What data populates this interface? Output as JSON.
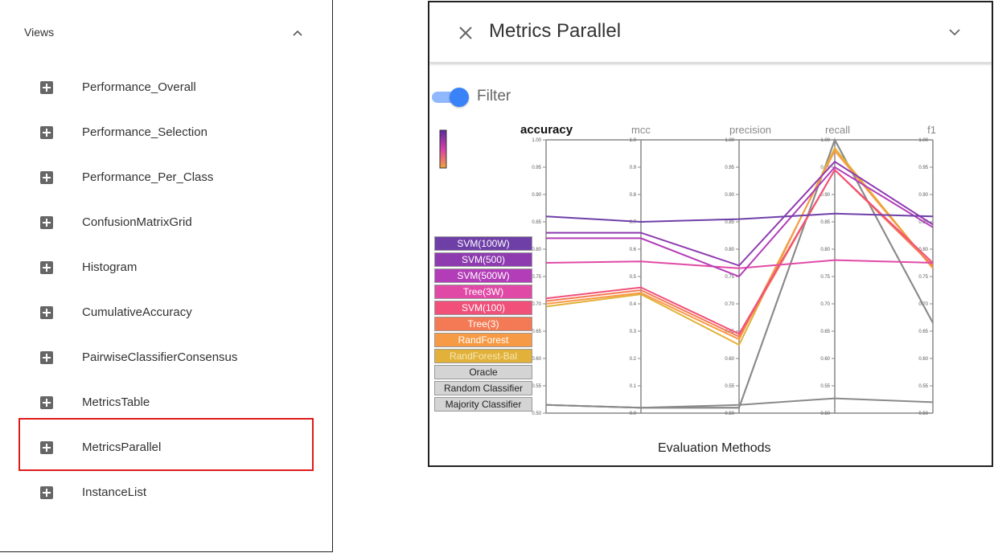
{
  "sidebar": {
    "header": "Views",
    "items": [
      {
        "label": "Performance_Overall"
      },
      {
        "label": "Performance_Selection"
      },
      {
        "label": "Performance_Per_Class"
      },
      {
        "label": "ConfusionMatrixGrid"
      },
      {
        "label": "Histogram"
      },
      {
        "label": "CumulativeAccuracy"
      },
      {
        "label": "PairwiseClassifierConsensus"
      },
      {
        "label": "MetricsTable"
      },
      {
        "label": "MetricsParallel"
      },
      {
        "label": "InstanceList"
      }
    ],
    "highlighted_item": "MetricsParallel",
    "highlight_color": "#e01b1b"
  },
  "card": {
    "title": "Metrics Parallel",
    "filter_label": "Filter",
    "filter_on": true,
    "icons": {
      "close": "close-icon",
      "expand": "chevron-down-icon"
    }
  },
  "chart_data": {
    "type": "parallel-coordinates",
    "xlabel": "Evaluation Methods",
    "highlighted_axis": "accuracy",
    "axes": [
      {
        "name": "accuracy",
        "range": [
          0.5,
          1.0
        ],
        "ticks": [
          "0.50",
          "0.55",
          "0.60",
          "0.65",
          "0.70",
          "0.75",
          "0.80",
          "0.85",
          "0.90",
          "0.95",
          "1.00"
        ]
      },
      {
        "name": "mcc",
        "range": [
          0.0,
          1.0
        ],
        "ticks": [
          "0.0",
          "0.1",
          "0.2",
          "0.3",
          "0.4",
          "0.5",
          "0.6",
          "0.7",
          "0.8",
          "0.9",
          "1.0"
        ]
      },
      {
        "name": "precision",
        "range": [
          0.5,
          1.0
        ],
        "ticks": [
          "0.50",
          "0.55",
          "0.60",
          "0.65",
          "0.70",
          "0.75",
          "0.80",
          "0.85",
          "0.90",
          "0.95",
          "1.00"
        ]
      },
      {
        "name": "recall",
        "range": [
          0.5,
          1.0
        ],
        "ticks": [
          "0.50",
          "0.55",
          "0.60",
          "0.65",
          "0.70",
          "0.75",
          "0.80",
          "0.85",
          "0.90",
          "0.95",
          "1.00"
        ]
      },
      {
        "name": "f1",
        "range": [
          0.5,
          1.0
        ],
        "ticks": [
          "0.50",
          "0.55",
          "0.60",
          "0.65",
          "0.70",
          "0.75",
          "0.80",
          "0.85",
          "0.90",
          "0.95",
          "1.00"
        ]
      }
    ],
    "series": [
      {
        "name": "SVM(100W)",
        "color": "#6f3fa8",
        "text_color": "#ffffff",
        "values": [
          0.86,
          0.7,
          0.855,
          0.865,
          0.86
        ]
      },
      {
        "name": "SVM(500)",
        "color": "#8e3bb0",
        "text_color": "#ffffff",
        "values": [
          0.83,
          0.66,
          0.77,
          0.96,
          0.845
        ]
      },
      {
        "name": "SVM(500W)",
        "color": "#b33cb8",
        "text_color": "#ffffff",
        "values": [
          0.82,
          0.64,
          0.75,
          0.95,
          0.84
        ]
      },
      {
        "name": "Tree(3W)",
        "color": "#e04aa6",
        "text_color": "#ffffff",
        "values": [
          0.775,
          0.555,
          0.765,
          0.78,
          0.775
        ]
      },
      {
        "name": "SVM(100)",
        "color": "#f0507a",
        "text_color": "#ffffff",
        "values": [
          0.71,
          0.46,
          0.645,
          0.945,
          0.775
        ]
      },
      {
        "name": "Tree(3)",
        "color": "#f47a55",
        "text_color": "#ffffff",
        "values": [
          0.705,
          0.45,
          0.64,
          0.945,
          0.77
        ]
      },
      {
        "name": "RandForest",
        "color": "#f79a45",
        "text_color": "#ffffff",
        "values": [
          0.7,
          0.44,
          0.635,
          0.98,
          0.765
        ]
      },
      {
        "name": "RandForest-Bal",
        "color": "#e2b139",
        "text_color": "#f5e9b9",
        "values": [
          0.695,
          0.435,
          0.625,
          0.985,
          0.765
        ]
      },
      {
        "name": "Oracle",
        "color": "#d4d4d4",
        "text_color": "#222222",
        "values": [
          0.515,
          0.02,
          0.51,
          1.0,
          0.665
        ]
      },
      {
        "name": "Random Classifier",
        "color": "#d4d4d4",
        "text_color": "#222222",
        "values": [
          0.515,
          0.02,
          0.51,
          1.0,
          0.665
        ]
      },
      {
        "name": "Majority Classifier",
        "color": "#d4d4d4",
        "text_color": "#222222",
        "values": [
          0.515,
          0.02,
          0.515,
          0.527,
          0.52
        ]
      }
    ]
  }
}
